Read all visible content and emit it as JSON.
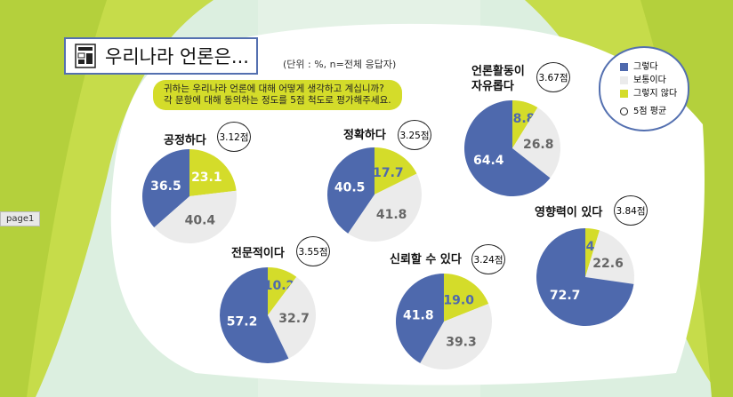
{
  "header": {
    "title": "우리나라 언론은...",
    "unit": "(단위 : %, n=전체 응답자)",
    "question_line1": "귀하는 우리나라 언론에 대해 어떻게 생각하고 계십니까?",
    "question_line2": "각 문항에 대해 동의하는 정도를 5점 척도로 평가해주세요."
  },
  "legend": {
    "items": [
      "그렇다",
      "보통이다",
      "그렇지 않다"
    ],
    "avg": "5점 평균"
  },
  "page_tag": "page1",
  "colors": {
    "agree": "#4e69ad",
    "neutral": "#ebebeb",
    "disagree": "#d4dc2a"
  },
  "chart_data": [
    {
      "type": "pie",
      "title": "공정하다",
      "score": "3.12점",
      "labels": [
        "그렇지 않다",
        "보통이다",
        "그렇다"
      ],
      "values": [
        23.1,
        40.4,
        36.5
      ]
    },
    {
      "type": "pie",
      "title": "정확하다",
      "score": "3.25점",
      "labels": [
        "그렇지 않다",
        "보통이다",
        "그렇다"
      ],
      "values": [
        17.7,
        41.8,
        40.5
      ]
    },
    {
      "type": "pie",
      "title": "언론활동이 자유롭다",
      "title_line1": "언론활동이",
      "title_line2": "자유롭다",
      "score": "3.67점",
      "labels": [
        "그렇지 않다",
        "보통이다",
        "그렇다"
      ],
      "values": [
        8.8,
        26.8,
        64.4
      ]
    },
    {
      "type": "pie",
      "title": "전문적이다",
      "score": "3.55점",
      "labels": [
        "그렇지 않다",
        "보통이다",
        "그렇다"
      ],
      "values": [
        10.2,
        32.7,
        57.2
      ]
    },
    {
      "type": "pie",
      "title": "신뢰할 수 있다",
      "score": "3.24점",
      "labels": [
        "그렇지 않다",
        "보통이다",
        "그렇다"
      ],
      "values": [
        19.0,
        39.3,
        41.8
      ]
    },
    {
      "type": "pie",
      "title": "영향력이 있다",
      "score": "3.84점",
      "labels": [
        "그렇지 않다",
        "보통이다",
        "그렇다"
      ],
      "values": [
        4.7,
        22.6,
        72.7
      ]
    }
  ]
}
